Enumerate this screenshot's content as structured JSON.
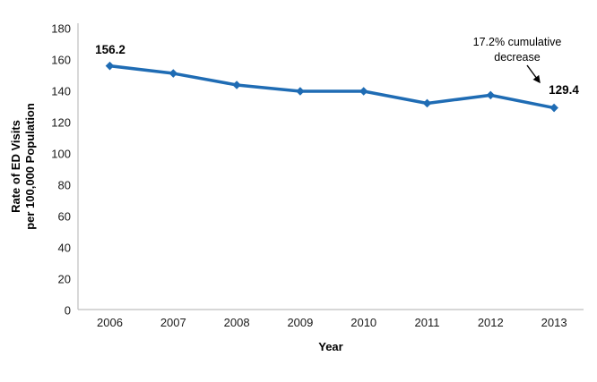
{
  "chart_data": {
    "type": "line",
    "categories": [
      "2006",
      "2007",
      "2008",
      "2009",
      "2010",
      "2011",
      "2012",
      "2013"
    ],
    "series": [
      {
        "name": "Rate of ED visits per 100,000 population",
        "values": [
          156.2,
          151.4,
          144.0,
          140.0,
          140.0,
          132.3,
          137.5,
          129.4
        ]
      }
    ],
    "xlabel": "Year",
    "ylabel_line1": "Rate of ED Visits",
    "ylabel_line2": "per 100,000 Population",
    "ylim": [
      0,
      180
    ],
    "yticks": [
      0,
      20,
      40,
      60,
      80,
      100,
      120,
      140,
      160,
      180
    ],
    "grid": false,
    "legend": "none",
    "marker": "diamond",
    "point_labels": {
      "first": "156.2",
      "last": "129.4"
    },
    "annotation": {
      "line1": "17.2% cumulative",
      "line2": "decrease"
    },
    "colors": {
      "line": "#1F6CB4",
      "axis_line": "#BFBFBF",
      "text": "#1A1A1A"
    }
  }
}
